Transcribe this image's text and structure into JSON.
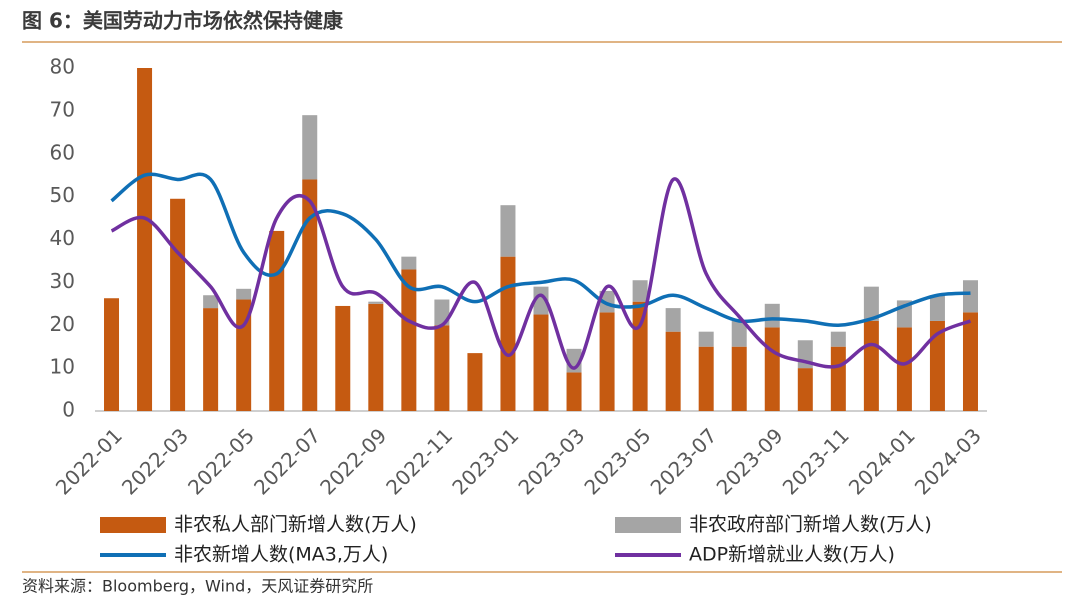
{
  "chart_data": {
    "type": "bar",
    "title": "图 6：美国劳动力市场依然保持健康",
    "source": "资料来源：Bloomberg，Wind，天风证券研究所",
    "categories": [
      "2022-01",
      null,
      "2022-03",
      null,
      "2022-05",
      null,
      "2022-07",
      null,
      "2022-09",
      null,
      "2022-11",
      null,
      "2023-01",
      null,
      "2023-03",
      null,
      "2023-05",
      null,
      "2023-07",
      null,
      "2023-09",
      null,
      "2023-11",
      null,
      "2024-01",
      null,
      "2024-03"
    ],
    "ylim": [
      0,
      80
    ],
    "yticks": [
      0,
      10,
      20,
      30,
      40,
      50,
      60,
      70,
      80
    ],
    "grid": false,
    "series": [
      {
        "name": "非农私人部门新增人数(万人)",
        "type": "bar",
        "stack": true,
        "color": "#c55a11",
        "values": [
          26.3,
          80,
          49.5,
          24,
          26,
          42,
          54,
          24.5,
          25,
          33,
          20,
          13.5,
          36,
          22.5,
          9,
          23,
          25.5,
          18.5,
          15,
          15,
          19.5,
          10,
          15,
          21,
          19.5,
          21,
          23
        ]
      },
      {
        "name": "非农政府部门新增人数(万人)",
        "type": "bar",
        "stack": true,
        "color": "#a5a5a5",
        "values": [
          0,
          0,
          0,
          3,
          2.5,
          0,
          15,
          0,
          0.5,
          3,
          6,
          0,
          12,
          6.5,
          5.5,
          5,
          5,
          5.5,
          3.5,
          6,
          5.5,
          6.5,
          3.5,
          8,
          6.3,
          6,
          7.5
        ]
      },
      {
        "name": "非农新增人数(MA3,万人)",
        "type": "line",
        "color": "#0f6fb5",
        "values": [
          49,
          55,
          54,
          54,
          37,
          32,
          45,
          46,
          40,
          29,
          29,
          25.5,
          29,
          30,
          30.5,
          25,
          24.5,
          27,
          24,
          21,
          21.5,
          21,
          20,
          21.5,
          24.5,
          27,
          27.5
        ]
      },
      {
        "name": "ADP新增就业人数(万人)",
        "type": "line",
        "color": "#7030a0",
        "values": [
          42,
          45,
          37,
          29,
          20,
          45,
          49,
          29,
          27.5,
          21,
          20,
          30,
          13,
          27,
          10,
          29,
          20,
          54,
          32,
          22,
          14,
          11.5,
          10.5,
          15.5,
          11,
          18,
          21
        ]
      }
    ]
  }
}
